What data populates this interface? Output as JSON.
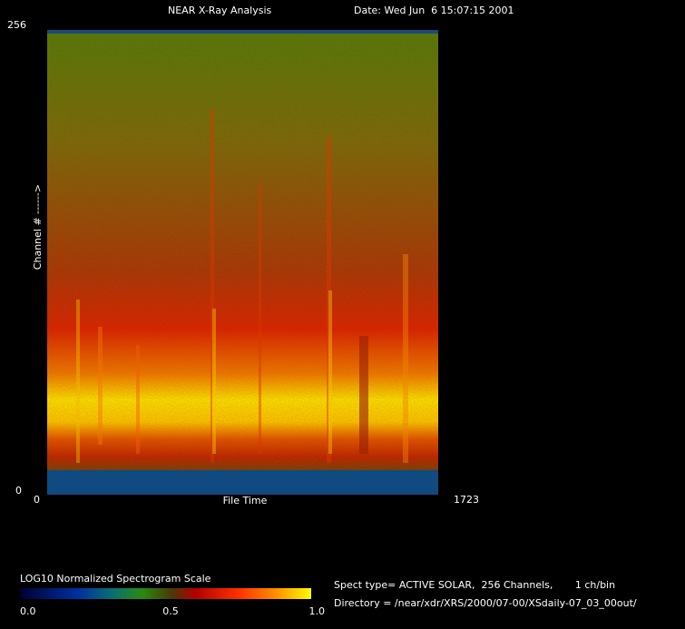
{
  "header": {
    "title": "NEAR X-Ray Analysis",
    "date": "Date: Wed Jun  6 15:07:15 2001"
  },
  "plot": {
    "y_axis_label": "Channel # ------>",
    "y_top_label": "256",
    "y_bottom_label": "0",
    "x_axis_label": "File Time",
    "x_left_label": "0",
    "x_right_label": "1723"
  },
  "colorbar": {
    "title": "LOG10 Normalized Spectrogram Scale",
    "labels": [
      "0.0",
      "0.5",
      "1.0"
    ]
  },
  "info": {
    "spect_line": "Spect type= ACTIVE SOLAR,  256 Channels,       1 ch/bin",
    "directory_line": "Directory = /near/xdr/XRS/2000/07-00/XSdaily-07_03_00out/"
  }
}
